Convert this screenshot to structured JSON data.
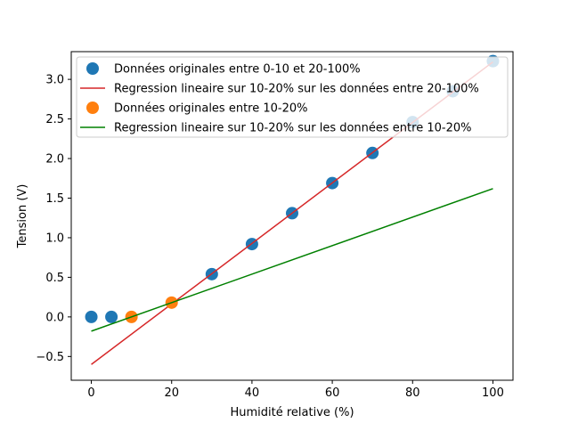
{
  "chart_data": {
    "type": "scatter",
    "title": "",
    "xlabel": "Humidité relative (%)",
    "ylabel": "Tension (V)",
    "xlim": [
      -5,
      105
    ],
    "ylim": [
      -0.8,
      3.35
    ],
    "xticks": [
      0,
      20,
      40,
      60,
      80,
      100
    ],
    "xtick_labels": [
      "0",
      "20",
      "40",
      "60",
      "80",
      "100"
    ],
    "yticks": [
      -0.5,
      0.0,
      0.5,
      1.0,
      1.5,
      2.0,
      2.5,
      3.0
    ],
    "ytick_labels": [
      "−0.5",
      "0.0",
      "0.5",
      "1.0",
      "1.5",
      "2.0",
      "2.5",
      "3.0"
    ],
    "grid": false,
    "legend_position": "top-left",
    "series": [
      {
        "name": "Données originales entre 0-10 et 20-100%",
        "kind": "scatter",
        "color": "#1f77b4",
        "points": [
          [
            0,
            0.0
          ],
          [
            5,
            0.0
          ],
          [
            30,
            0.54
          ],
          [
            40,
            0.92
          ],
          [
            50,
            1.31
          ],
          [
            60,
            1.69
          ],
          [
            70,
            2.07
          ],
          [
            80,
            2.46
          ],
          [
            90,
            2.85
          ],
          [
            100,
            3.23
          ]
        ]
      },
      {
        "name": "Regression lineaire sur 10-20% sur les données entre 20-100%",
        "kind": "line",
        "color": "#d62728",
        "points": [
          [
            0,
            -0.6
          ],
          [
            100,
            3.22
          ]
        ]
      },
      {
        "name": "Données originales entre 10-20%",
        "kind": "scatter",
        "color": "#ff7f0e",
        "points": [
          [
            10,
            0.0
          ],
          [
            20,
            0.18
          ]
        ]
      },
      {
        "name": "Regression lineaire sur 10-20% sur les données entre 10-20%",
        "kind": "line",
        "color": "#008000",
        "points": [
          [
            0,
            -0.18
          ],
          [
            100,
            1.62
          ]
        ]
      }
    ]
  }
}
